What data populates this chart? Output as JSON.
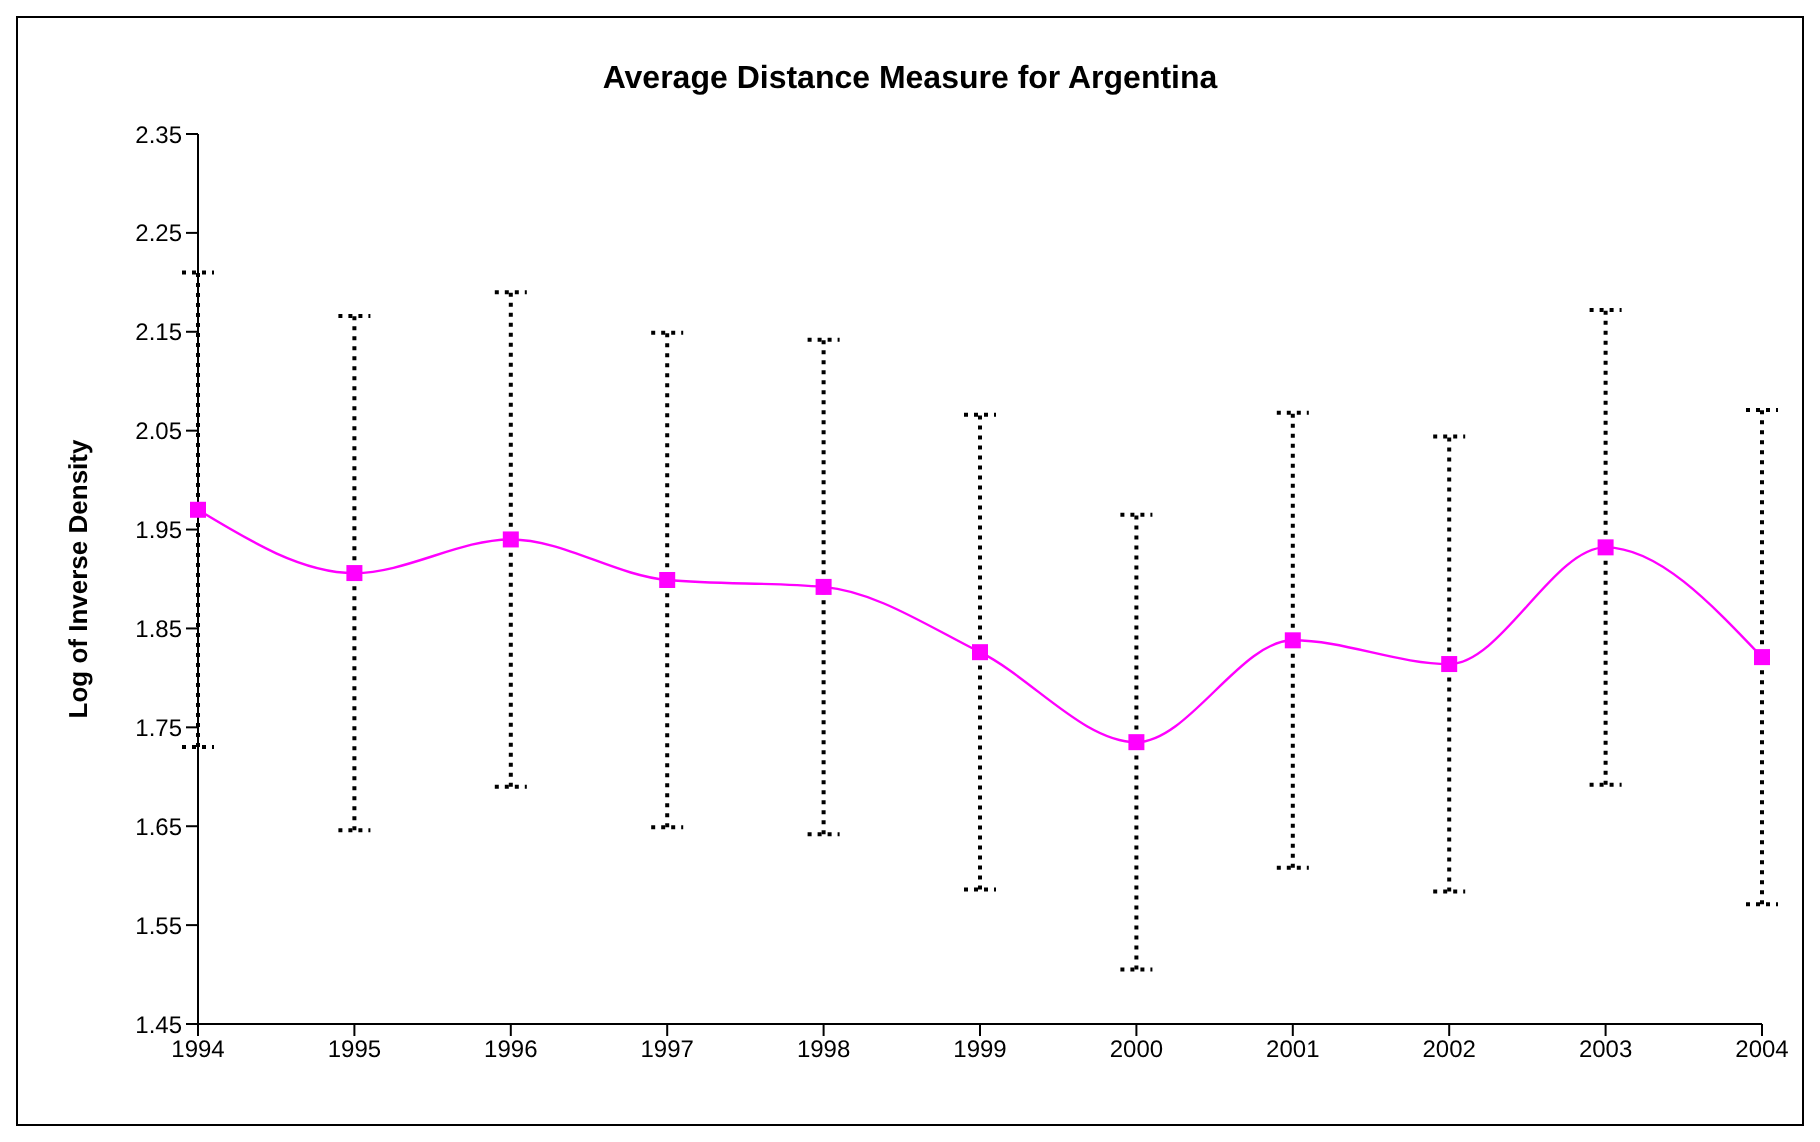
{
  "chart_data": {
    "type": "line",
    "title": "Average Distance Measure for Argentina",
    "ylabel": "Log of Inverse Density",
    "categories": [
      "1994",
      "1995",
      "1996",
      "1997",
      "1998",
      "1999",
      "2000",
      "2001",
      "2002",
      "2003",
      "2004"
    ],
    "series": [
      {
        "color": "#ff00ff",
        "values": [
          1.97,
          1.906,
          1.94,
          1.899,
          1.892,
          1.826,
          1.735,
          1.838,
          1.814,
          1.932,
          1.821
        ],
        "errors": [
          0.24,
          0.26,
          0.25,
          0.25,
          0.25,
          0.24,
          0.23,
          0.23,
          0.23,
          0.24,
          0.25
        ]
      }
    ],
    "ylim": [
      1.45,
      2.35
    ],
    "yticks": [
      1.45,
      1.55,
      1.65,
      1.75,
      1.85,
      1.95,
      2.05,
      2.15,
      2.25,
      2.35
    ],
    "grid": false,
    "legend": false,
    "marker": "square",
    "line_style": "solid"
  }
}
